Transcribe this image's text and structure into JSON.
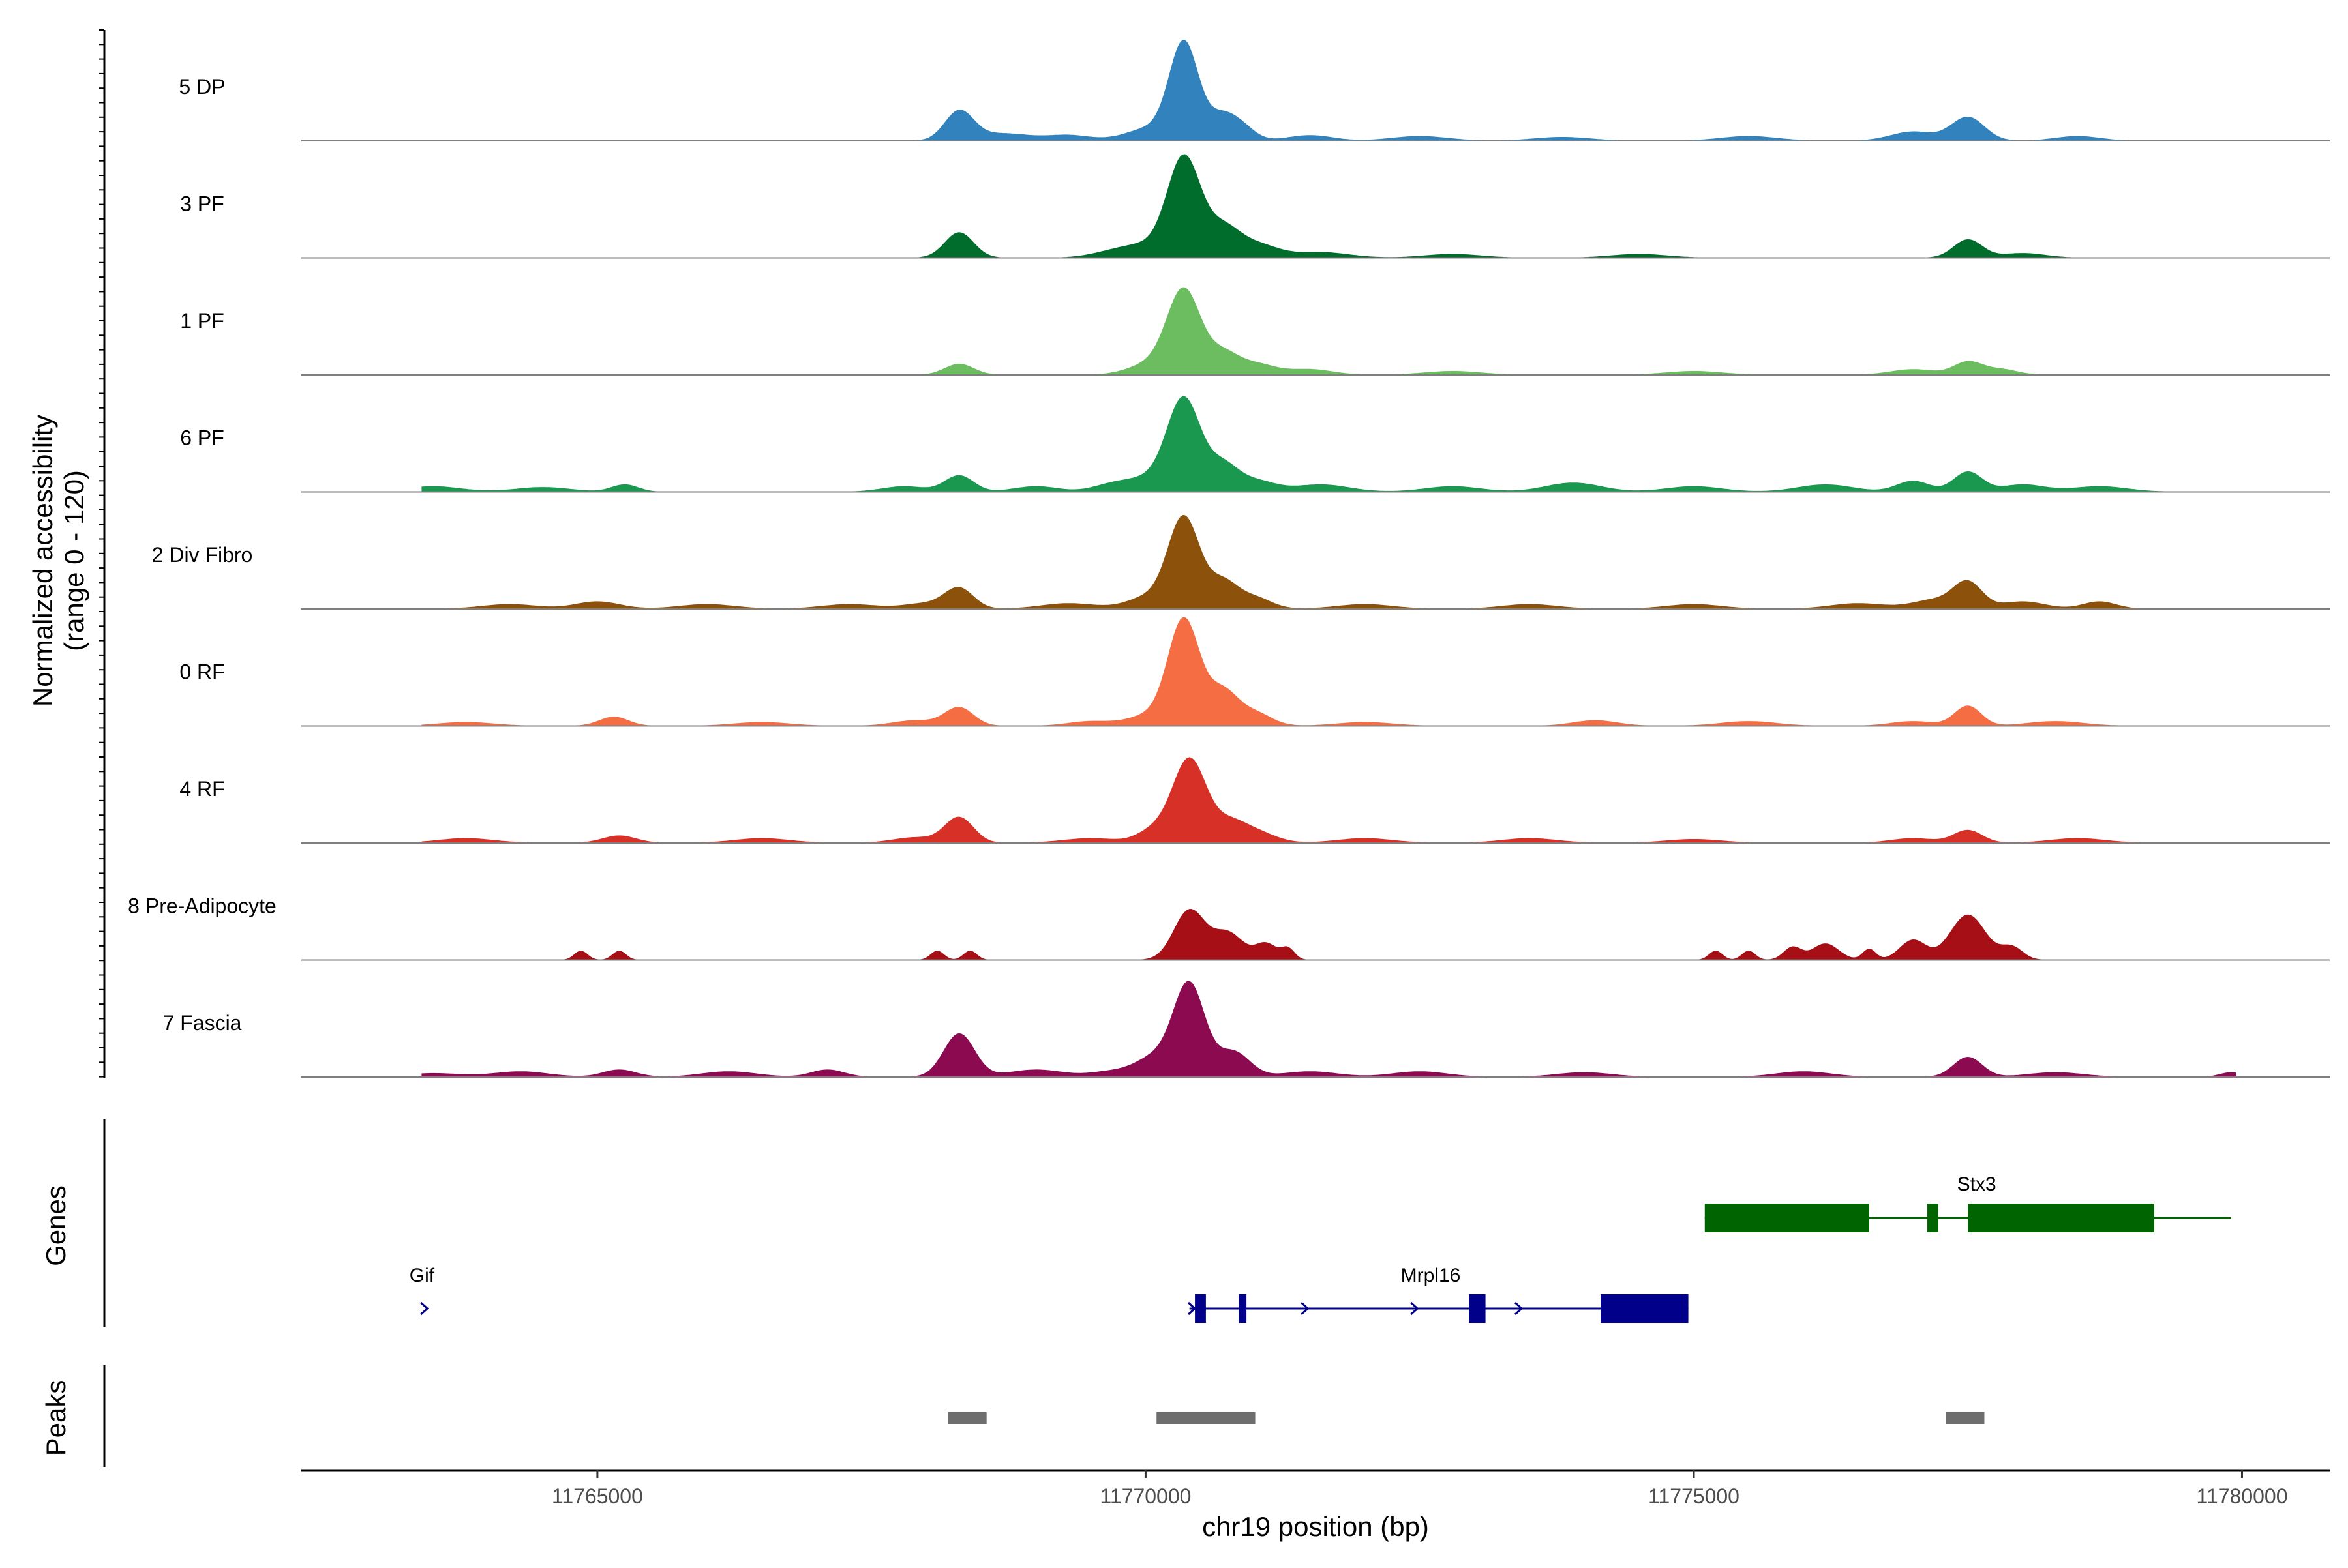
{
  "chart_data": {
    "type": "area",
    "title": "",
    "region": {
      "chrom": "chr19",
      "start": 11762300,
      "end": 11780800
    },
    "xlabel": "chr19 position (bp)",
    "ylabel_line1": "Normalized accessibility",
    "ylabel_line2": "(range 0 - 120)",
    "ylim": [
      0,
      120
    ],
    "x_ticks": [
      {
        "value": 11765000,
        "label": "11765000"
      },
      {
        "value": 11770000,
        "label": "11770000"
      },
      {
        "value": 11775000,
        "label": "11775000"
      },
      {
        "value": 11780000,
        "label": "11780000"
      }
    ],
    "tracks": [
      {
        "name": "5 DP",
        "color": "#3182bd",
        "peaks": [
          [
            11768300,
            32,
            130
          ],
          [
            11768700,
            8,
            250
          ],
          [
            11769300,
            6,
            200
          ],
          [
            11770050,
            14,
            220
          ],
          [
            11770350,
            105,
            130
          ],
          [
            11770700,
            28,
            140
          ],
          [
            11770900,
            10,
            120
          ],
          [
            11771500,
            6,
            200
          ],
          [
            11772500,
            5,
            250
          ],
          [
            11773800,
            4,
            250
          ],
          [
            11775500,
            5,
            250
          ],
          [
            11777000,
            10,
            200
          ],
          [
            11777500,
            26,
            150
          ],
          [
            11778500,
            5,
            200
          ]
        ]
      },
      {
        "name": "3 PF",
        "color": "#006d2c",
        "peaks": [
          [
            11768300,
            28,
            130
          ],
          [
            11769700,
            6,
            200
          ],
          [
            11770000,
            12,
            200
          ],
          [
            11770350,
            110,
            150
          ],
          [
            11770700,
            30,
            150
          ],
          [
            11771000,
            15,
            200
          ],
          [
            11771600,
            6,
            250
          ],
          [
            11772800,
            4,
            250
          ],
          [
            11774500,
            4,
            250
          ],
          [
            11777500,
            20,
            130
          ],
          [
            11778000,
            5,
            200
          ]
        ]
      },
      {
        "name": "1 PF",
        "color": "#6bbd60",
        "peaks": [
          [
            11768300,
            12,
            130
          ],
          [
            11770050,
            12,
            200
          ],
          [
            11770350,
            92,
            150
          ],
          [
            11770700,
            22,
            140
          ],
          [
            11771000,
            12,
            180
          ],
          [
            11771500,
            6,
            200
          ],
          [
            11772800,
            4,
            250
          ],
          [
            11775000,
            4,
            250
          ],
          [
            11777000,
            6,
            200
          ],
          [
            11777500,
            14,
            130
          ],
          [
            11777800,
            6,
            150
          ]
        ]
      },
      {
        "name": "6 PF",
        "color": "#1a9850",
        "peaks": [
          [
            11763500,
            6,
            250
          ],
          [
            11764500,
            5,
            250
          ],
          [
            11765250,
            8,
            120
          ],
          [
            11767800,
            6,
            200
          ],
          [
            11768300,
            18,
            130
          ],
          [
            11769000,
            6,
            200
          ],
          [
            11769700,
            8,
            180
          ],
          [
            11770050,
            14,
            200
          ],
          [
            11770350,
            100,
            150
          ],
          [
            11770700,
            28,
            140
          ],
          [
            11771000,
            12,
            180
          ],
          [
            11771600,
            8,
            250
          ],
          [
            11772800,
            6,
            250
          ],
          [
            11773900,
            10,
            250
          ],
          [
            11775000,
            6,
            250
          ],
          [
            11776200,
            8,
            250
          ],
          [
            11777000,
            12,
            150
          ],
          [
            11777500,
            22,
            130
          ],
          [
            11778000,
            8,
            200
          ],
          [
            11778700,
            6,
            250
          ]
        ]
      },
      {
        "name": "2 Div Fibro",
        "color": "#8c510a",
        "peaks": [
          [
            11764200,
            5,
            250
          ],
          [
            11765000,
            8,
            200
          ],
          [
            11766000,
            5,
            250
          ],
          [
            11767300,
            5,
            250
          ],
          [
            11768000,
            6,
            200
          ],
          [
            11768300,
            22,
            130
          ],
          [
            11769300,
            6,
            250
          ],
          [
            11770050,
            14,
            200
          ],
          [
            11770350,
            98,
            140
          ],
          [
            11770700,
            30,
            140
          ],
          [
            11771000,
            12,
            150
          ],
          [
            11772000,
            5,
            250
          ],
          [
            11773500,
            5,
            250
          ],
          [
            11775000,
            5,
            250
          ],
          [
            11776500,
            6,
            250
          ],
          [
            11777200,
            10,
            200
          ],
          [
            11777500,
            28,
            130
          ],
          [
            11778000,
            8,
            200
          ],
          [
            11778700,
            8,
            150
          ]
        ]
      },
      {
        "name": "0 RF",
        "color": "#f46d43",
        "peaks": [
          [
            11763800,
            4,
            250
          ],
          [
            11765150,
            10,
            130
          ],
          [
            11766500,
            4,
            250
          ],
          [
            11767900,
            6,
            200
          ],
          [
            11768300,
            20,
            130
          ],
          [
            11769500,
            5,
            200
          ],
          [
            11770050,
            12,
            200
          ],
          [
            11770350,
            115,
            140
          ],
          [
            11770700,
            38,
            140
          ],
          [
            11771000,
            14,
            150
          ],
          [
            11772000,
            4,
            250
          ],
          [
            11774100,
            6,
            200
          ],
          [
            11775500,
            5,
            250
          ],
          [
            11777000,
            5,
            200
          ],
          [
            11777500,
            22,
            120
          ],
          [
            11778300,
            5,
            250
          ]
        ]
      },
      {
        "name": "4 RF",
        "color": "#d73027",
        "peaks": [
          [
            11763800,
            5,
            250
          ],
          [
            11765200,
            8,
            150
          ],
          [
            11766500,
            5,
            250
          ],
          [
            11767900,
            6,
            200
          ],
          [
            11768300,
            28,
            130
          ],
          [
            11769500,
            5,
            250
          ],
          [
            11770080,
            14,
            150
          ],
          [
            11770400,
            92,
            150
          ],
          [
            11770750,
            20,
            150
          ],
          [
            11771000,
            12,
            180
          ],
          [
            11772000,
            5,
            250
          ],
          [
            11773500,
            5,
            250
          ],
          [
            11775000,
            4,
            250
          ],
          [
            11777000,
            5,
            200
          ],
          [
            11777500,
            14,
            130
          ],
          [
            11778500,
            5,
            250
          ]
        ]
      },
      {
        "name": "8 Pre-Adipocyte",
        "color": "#a50f15",
        "peaks": [
          [
            11764850,
            10,
            60
          ],
          [
            11765200,
            10,
            60
          ],
          [
            11768100,
            10,
            60
          ],
          [
            11768400,
            10,
            60
          ],
          [
            11770400,
            55,
            140
          ],
          [
            11770750,
            30,
            140
          ],
          [
            11771100,
            18,
            100
          ],
          [
            11771300,
            12,
            60
          ],
          [
            11775200,
            10,
            60
          ],
          [
            11775500,
            10,
            60
          ],
          [
            11775900,
            14,
            80
          ],
          [
            11776200,
            18,
            120
          ],
          [
            11776600,
            12,
            60
          ],
          [
            11777000,
            22,
            120
          ],
          [
            11777500,
            50,
            160
          ],
          [
            11777900,
            14,
            100
          ]
        ]
      },
      {
        "name": "7 Fascia",
        "color": "#8b0a50",
        "peaks": [
          [
            11763500,
            4,
            250
          ],
          [
            11764300,
            6,
            250
          ],
          [
            11765200,
            8,
            150
          ],
          [
            11766200,
            6,
            250
          ],
          [
            11767100,
            8,
            150
          ],
          [
            11768300,
            48,
            140
          ],
          [
            11769000,
            8,
            250
          ],
          [
            11769700,
            6,
            200
          ],
          [
            11770100,
            22,
            180
          ],
          [
            11770400,
            100,
            140
          ],
          [
            11770800,
            28,
            150
          ],
          [
            11771500,
            6,
            250
          ],
          [
            11772500,
            6,
            250
          ],
          [
            11774000,
            5,
            250
          ],
          [
            11776000,
            6,
            250
          ],
          [
            11777500,
            22,
            130
          ],
          [
            11778300,
            5,
            250
          ],
          [
            11779900,
            5,
            100
          ]
        ]
      }
    ],
    "genes": [
      {
        "name": "Gif",
        "color": "#00008b",
        "strand": "+",
        "row": 2,
        "line": [
          11763400,
          11763450
        ],
        "exons": [],
        "arrows": [
          11763420
        ],
        "label_pos": 11763400
      },
      {
        "name": "Mrpl16",
        "color": "#00008b",
        "strand": "+",
        "row": 2,
        "line": [
          11770400,
          11774950
        ],
        "exons": [
          [
            11770450,
            11770550
          ],
          [
            11770850,
            11770920
          ],
          [
            11772950,
            11773100
          ],
          [
            11774150,
            11774950
          ]
        ],
        "arrows": [
          11770420,
          11771450,
          11772450,
          11773400
        ],
        "label_pos": 11772600
      },
      {
        "name": "Stx3",
        "color": "#006400",
        "strand": "+",
        "row": 1,
        "line": [
          11775100,
          11779900
        ],
        "exons": [
          [
            11775100,
            11776600
          ],
          [
            11777130,
            11777230
          ],
          [
            11777500,
            11779200
          ]
        ],
        "arrows": [],
        "label_pos": 11777580
      }
    ],
    "peak_regions": [
      [
        11768200,
        11768550
      ],
      [
        11770100,
        11771000
      ],
      [
        11777300,
        11777650
      ]
    ],
    "panel_labels": {
      "genes": "Genes",
      "peaks": "Peaks"
    }
  }
}
